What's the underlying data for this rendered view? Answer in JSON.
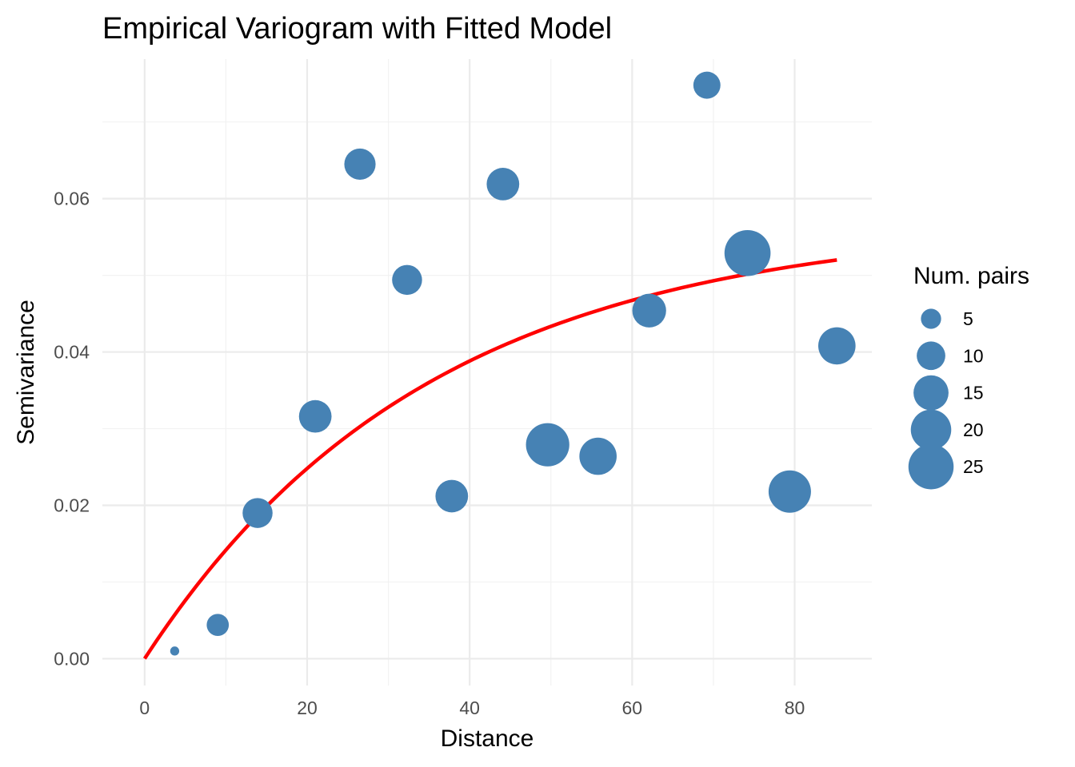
{
  "chart_data": {
    "type": "scatter",
    "title": "Empirical Variogram with Fitted Model",
    "xlabel": "Distance",
    "ylabel": "Semivariance",
    "xlim": [
      -5.2,
      89.5
    ],
    "ylim": [
      -0.0035,
      0.0782
    ],
    "x_ticks": [
      0,
      20,
      40,
      60,
      80
    ],
    "x_tick_labels": [
      "0",
      "20",
      "40",
      "60",
      "80"
    ],
    "y_ticks": [
      0.0,
      0.02,
      0.04,
      0.06
    ],
    "y_tick_labels": [
      "0.00",
      "0.02",
      "0.04",
      "0.06"
    ],
    "grid": true,
    "points": {
      "color": "#4682b4",
      "distance": [
        3.7,
        9.0,
        13.9,
        21.0,
        26.5,
        32.3,
        37.8,
        44.1,
        49.6,
        55.8,
        62.1,
        69.2,
        74.2,
        79.4,
        85.2
      ],
      "semivariance": [
        0.001,
        0.0044,
        0.019,
        0.0316,
        0.0645,
        0.0494,
        0.0212,
        0.0619,
        0.0279,
        0.0264,
        0.0454,
        0.0748,
        0.0529,
        0.0218,
        0.0408
      ],
      "num_pairs": [
        1,
        6,
        11,
        13,
        12,
        11,
        13,
        13,
        23,
        17,
        14,
        9,
        26,
        22,
        17
      ]
    },
    "fitted_model": {
      "color": "#ff0000",
      "type": "exponential",
      "sill": 0.057,
      "range": 35.0,
      "x_min": 0,
      "x_max": 85.2
    },
    "legend": {
      "title": "Num. pairs",
      "placement": "right",
      "sizes": [
        5,
        10,
        15,
        20,
        25
      ],
      "labels": [
        "5",
        "10",
        "15",
        "20",
        "25"
      ]
    }
  }
}
